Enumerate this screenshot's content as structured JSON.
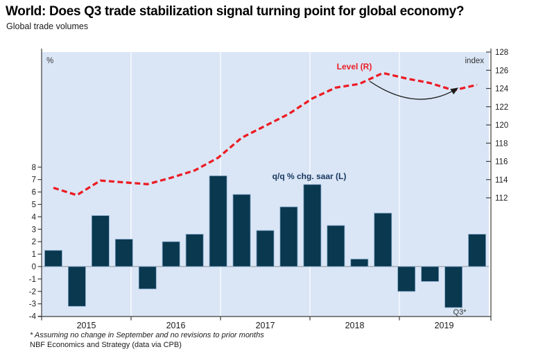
{
  "header": {
    "title": "World: Does Q3 trade stabilization signal turning point for global economy?",
    "subtitle": "Global trade volumes"
  },
  "footnotes": {
    "assumption": "* Assuming no change in September and no revisions to prior months",
    "source": "NBF Economics and Strategy (data via CPB)"
  },
  "chart_data": {
    "type": "bar",
    "subtype": "bar-line-combo",
    "categories": [
      "2015 Q1",
      "2015 Q2",
      "2015 Q3",
      "2015 Q4",
      "2016 Q1",
      "2016 Q2",
      "2016 Q3",
      "2016 Q4",
      "2017 Q1",
      "2017 Q2",
      "2017 Q3",
      "2017 Q4",
      "2018 Q1",
      "2018 Q2",
      "2018 Q3",
      "2018 Q4",
      "2019 Q1",
      "2019 Q2",
      "2019 Q3"
    ],
    "series": [
      {
        "name": "q/q % chg. saar (L)",
        "type": "bar",
        "axis": "left",
        "values": [
          1.3,
          -3.2,
          4.1,
          2.2,
          -1.8,
          2.0,
          2.6,
          7.3,
          5.8,
          2.9,
          4.8,
          6.6,
          3.3,
          0.6,
          4.3,
          -2.0,
          -1.2,
          -3.3,
          2.6
        ]
      },
      {
        "name": "Level (R)",
        "type": "line",
        "style": "dashed",
        "axis": "right",
        "values": [
          113.1,
          112.3,
          113.9,
          113.7,
          113.5,
          114.2,
          115.0,
          116.4,
          118.6,
          119.9,
          121.2,
          122.9,
          124.1,
          124.5,
          125.7,
          125.1,
          124.6,
          123.8,
          124.4
        ]
      }
    ],
    "left_axis": {
      "label": "%",
      "ticks": [
        8,
        7,
        6,
        5,
        4,
        3,
        2,
        1,
        0,
        -1,
        -2,
        -3,
        -4
      ],
      "range": [
        -4,
        8
      ]
    },
    "right_axis": {
      "label": "index",
      "ticks": [
        128,
        126,
        124,
        122,
        120,
        118,
        116,
        114,
        112
      ],
      "range": [
        112,
        128
      ]
    },
    "x_tick_labels": [
      "2015",
      "2016",
      "2017",
      "2018",
      "2019"
    ],
    "annotations": {
      "line_label": "Level (R)",
      "bar_label": "q/q % chg. saar (L)",
      "last_point_label": "Q3*",
      "arrow": "curved arrow from 2018 peak pointing up toward end of line"
    },
    "grid": "vertical year gridlines on shaded panel",
    "legend_position": "inline annotations"
  },
  "colors": {
    "bar": "#09384f",
    "bar_border": "#7fa1c2",
    "line": "#ec1c24",
    "plot_bg": "#dae6f6",
    "gridline": "#f0f5fc",
    "zero_line": "#909090",
    "axis": "#3c3c3c",
    "navy_label": "#17365d",
    "arrow": "#1a1a1a"
  }
}
